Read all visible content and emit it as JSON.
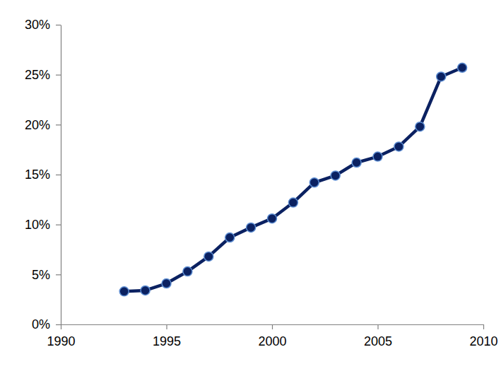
{
  "chart_data": {
    "type": "line",
    "x": [
      1993,
      1994,
      1995,
      1996,
      1997,
      1998,
      1999,
      2000,
      2001,
      2002,
      2003,
      2004,
      2005,
      2006,
      2007,
      2008,
      2009
    ],
    "values": [
      3.3,
      3.4,
      4.1,
      5.3,
      6.8,
      8.7,
      9.7,
      10.6,
      12.2,
      14.2,
      14.9,
      16.2,
      16.8,
      17.8,
      19.8,
      24.8,
      25.7
    ],
    "color": "#0b2161",
    "marker": "circle",
    "xlim": [
      1990,
      2010
    ],
    "xticks": [
      1990,
      1995,
      2000,
      2005,
      2010
    ],
    "ylim": [
      0,
      30
    ],
    "yticks": [
      {
        "value": 0,
        "label": "0%"
      },
      {
        "value": 5,
        "label": "5%"
      },
      {
        "value": 10,
        "label": "10%"
      },
      {
        "value": 15,
        "label": "15%"
      },
      {
        "value": 20,
        "label": "20%"
      },
      {
        "value": 25,
        "label": "25%"
      },
      {
        "value": 30,
        "label": "30%"
      }
    ],
    "grid": false
  }
}
